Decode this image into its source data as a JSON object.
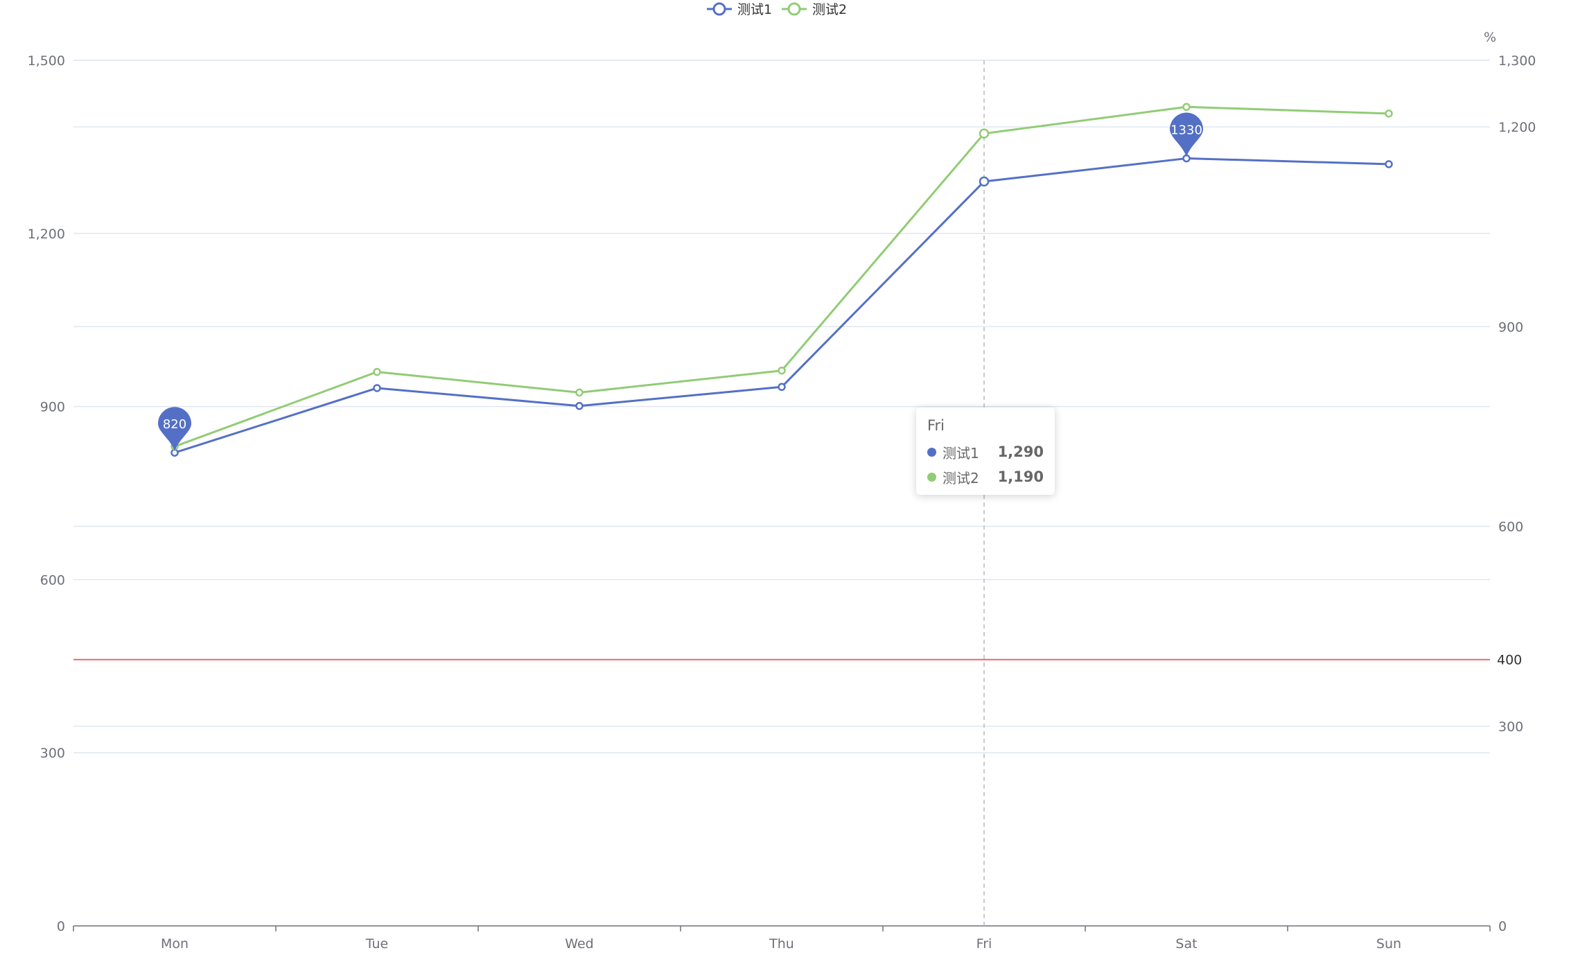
{
  "chart_data": {
    "type": "line",
    "categories": [
      "Mon",
      "Tue",
      "Wed",
      "Thu",
      "Fri",
      "Sat",
      "Sun"
    ],
    "series": [
      {
        "name": "测试1",
        "axis": "left",
        "values": [
          820,
          932,
          901,
          934,
          1290,
          1330,
          1320
        ],
        "color": "#5470c6"
      },
      {
        "name": "测试2",
        "axis": "right",
        "values": [
          720,
          832,
          801,
          834,
          1190,
          1230,
          1220
        ],
        "color": "#91cc75"
      }
    ],
    "y_left": {
      "min": 0,
      "max": 1500,
      "ticks": [
        0,
        300,
        600,
        900,
        1200,
        1500
      ],
      "tick_labels": [
        "0",
        "300",
        "600",
        "900",
        "1,200",
        "1,500"
      ]
    },
    "y_right": {
      "min": 0,
      "max": 1300,
      "ticks": [
        0,
        300,
        600,
        900,
        1200,
        1300
      ],
      "tick_labels": [
        "0",
        "300",
        "600",
        "900",
        "1,200",
        "1,300"
      ],
      "unit": "%"
    },
    "mark_line": {
      "axis": "right",
      "value": 400,
      "label": "400",
      "color": "#ee6666"
    },
    "mark_points": [
      {
        "series": 0,
        "category": "Mon",
        "value": 820,
        "label": "820"
      },
      {
        "series": 0,
        "category": "Sat",
        "value": 1330,
        "label": "1330"
      }
    ],
    "legend": {
      "position": "top-center",
      "items": [
        "测试1",
        "测试2"
      ]
    },
    "grid": true,
    "tooltip": {
      "category": "Fri",
      "rows": [
        {
          "name": "测试1",
          "value": "1,290",
          "color": "#5470c6"
        },
        {
          "name": "测试2",
          "value": "1,190",
          "color": "#91cc75"
        }
      ]
    }
  }
}
